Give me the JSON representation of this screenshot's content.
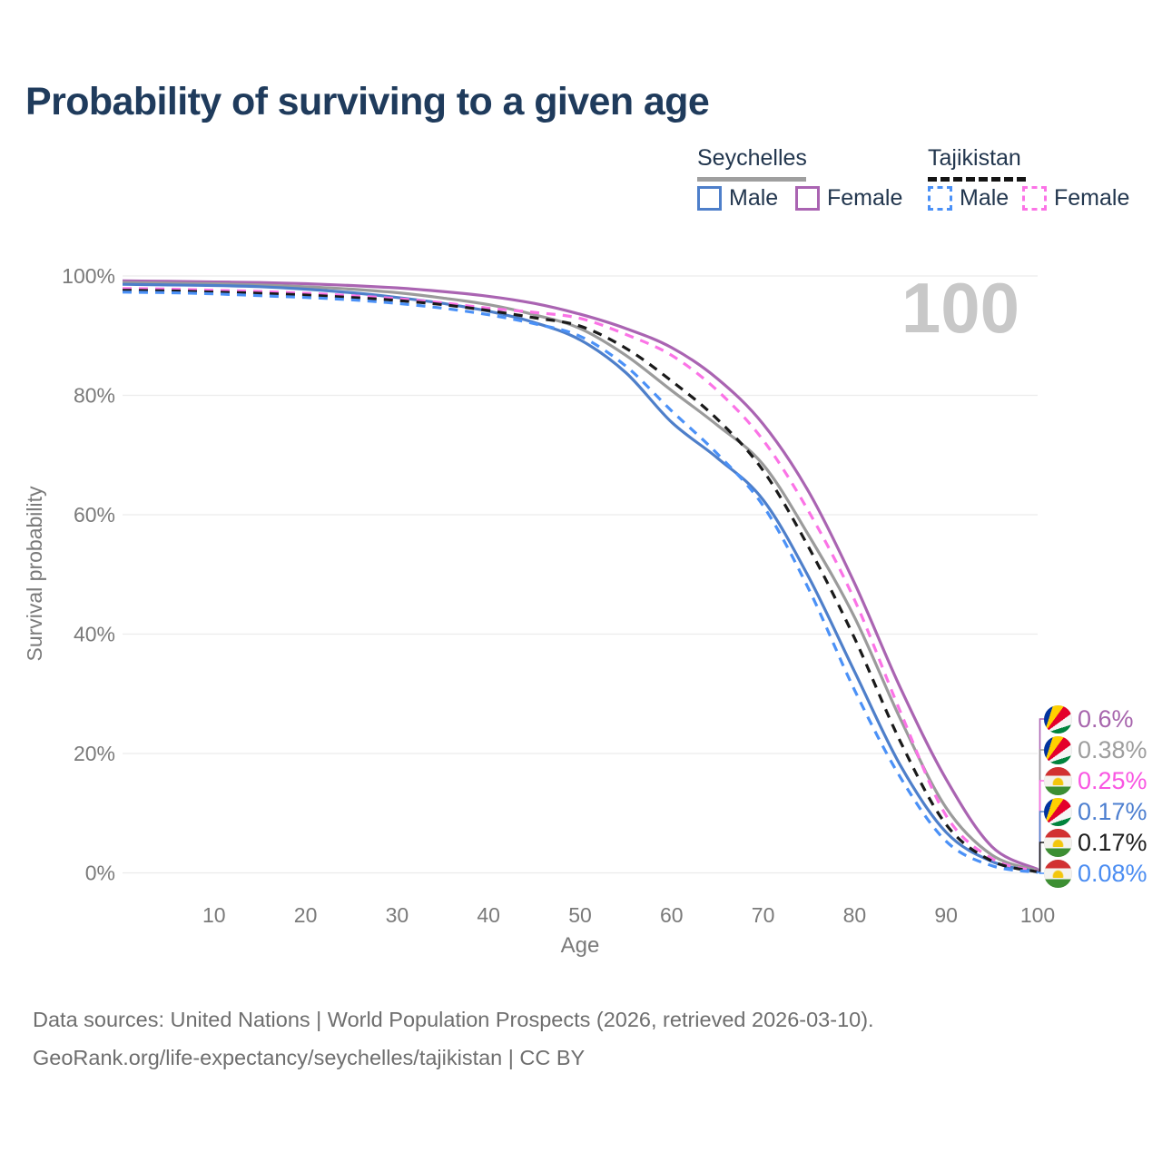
{
  "title": "Probability of surviving to a given age",
  "legend": {
    "groups": [
      {
        "name": "Seychelles",
        "line_style": "solid",
        "underline_color": "#9f9f9f",
        "items": [
          {
            "label": "Male",
            "color": "#4e7fca",
            "dashed": false
          },
          {
            "label": "Female",
            "color": "#aa64b2",
            "dashed": false
          }
        ]
      },
      {
        "name": "Tajikistan",
        "line_style": "dashed",
        "underline_color": "#141414",
        "items": [
          {
            "label": "Male",
            "color": "#4b91f7",
            "dashed": true
          },
          {
            "label": "Female",
            "color": "#fb73e6",
            "dashed": true
          }
        ]
      }
    ]
  },
  "watermark": "100",
  "chart_data": {
    "type": "line",
    "title": "Probability of surviving to a given age",
    "xlabel": "Age",
    "ylabel": "Survival probability",
    "xlim": [
      0,
      100
    ],
    "ylim": [
      0,
      100
    ],
    "x_ticks": [
      10,
      20,
      30,
      40,
      50,
      60,
      70,
      80,
      90,
      100
    ],
    "y_ticks_pct": [
      0,
      20,
      40,
      60,
      80,
      100
    ],
    "y_tick_suffix": "%",
    "grid": "horizontal",
    "legend_position": "top-right",
    "ages": [
      0,
      5,
      10,
      15,
      20,
      25,
      30,
      35,
      40,
      45,
      50,
      55,
      60,
      65,
      70,
      75,
      80,
      85,
      90,
      95,
      100
    ],
    "series": [
      {
        "name": "Seychelles — Female",
        "flag": "seychelles",
        "color": "#aa64b2",
        "dashed": false,
        "end_label": "0.6%",
        "label_color": "#a765ad",
        "values": [
          99.2,
          99.1,
          99.0,
          98.9,
          98.7,
          98.4,
          98.0,
          97.4,
          96.6,
          95.4,
          93.6,
          91.2,
          88.0,
          82.8,
          75.2,
          63.8,
          48.5,
          31.0,
          15.7,
          4.4,
          0.6
        ]
      },
      {
        "name": "Seychelles — Both sexes",
        "flag": "seychelles",
        "color": "#9b9b9b",
        "dashed": false,
        "end_label": "0.38%",
        "label_color": "#9e9e9e",
        "values": [
          98.9,
          98.8,
          98.7,
          98.5,
          98.2,
          97.8,
          97.2,
          96.3,
          95.2,
          93.5,
          91.2,
          86.7,
          80.8,
          75.0,
          68.4,
          56.5,
          42.8,
          25.8,
          10.9,
          3.0,
          0.38
        ]
      },
      {
        "name": "Tajikistan — Female",
        "flag": "tajikistan",
        "color": "#fb73e6",
        "dashed": true,
        "end_label": "0.25%",
        "label_color": "#f956e2",
        "values": [
          97.9,
          97.8,
          97.6,
          97.4,
          97.1,
          96.7,
          96.2,
          95.5,
          94.6,
          93.9,
          92.9,
          90.2,
          86.7,
          80.8,
          72.5,
          60.5,
          45.7,
          27.0,
          9.6,
          2.4,
          0.25
        ]
      },
      {
        "name": "Seychelles — Male",
        "flag": "seychelles",
        "color": "#4e7fca",
        "dashed": false,
        "end_label": "0.17%",
        "label_color": "#4d7fd0",
        "values": [
          98.6,
          98.5,
          98.4,
          98.2,
          97.8,
          97.2,
          96.4,
          95.4,
          94.1,
          92.2,
          89.3,
          83.8,
          75.5,
          69.5,
          62.5,
          49.5,
          33.7,
          18.0,
          6.8,
          1.9,
          0.17
        ]
      },
      {
        "name": "Tajikistan — Both sexes",
        "flag": "tajikistan",
        "color": "#1a1a1a",
        "dashed": true,
        "end_label": "0.17%",
        "label_color": "#1d1d1d",
        "values": [
          97.6,
          97.5,
          97.3,
          97.1,
          96.8,
          96.4,
          95.9,
          95.2,
          94.2,
          93.0,
          91.6,
          87.9,
          82.4,
          76.0,
          67.4,
          54.5,
          39.3,
          22.0,
          8.1,
          2.0,
          0.17
        ]
      },
      {
        "name": "Tajikistan — Male",
        "flag": "tajikistan",
        "color": "#4b91f7",
        "dashed": true,
        "end_label": "0.08%",
        "label_color": "#4b8df2",
        "values": [
          97.3,
          97.2,
          97.0,
          96.7,
          96.4,
          96.0,
          95.4,
          94.6,
          93.5,
          92.0,
          89.9,
          84.9,
          77.4,
          70.2,
          61.5,
          47.5,
          30.6,
          16.0,
          5.3,
          1.2,
          0.08
        ]
      }
    ]
  },
  "footer": {
    "line1": "Data sources: United Nations | World Population Prospects (2026, retrieved 2026-03-10).",
    "line2": "GeoRank.org/life-expectancy/seychelles/tajikistan | CC BY"
  }
}
